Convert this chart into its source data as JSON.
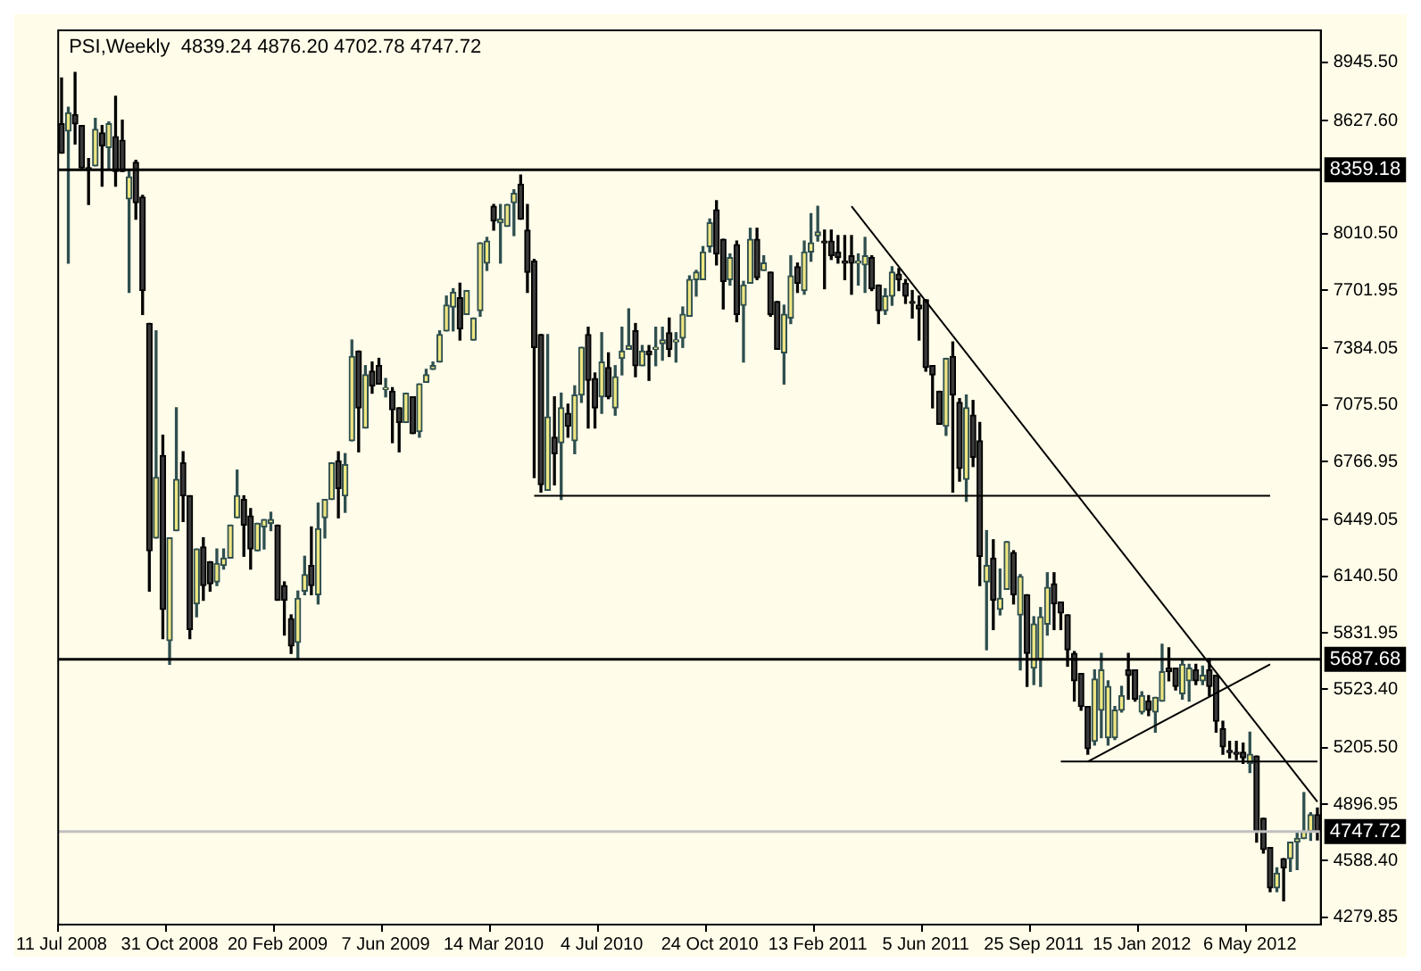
{
  "chart_data": {
    "type": "candlestick",
    "title": "PSI,Weekly  4839.24 4876.20 4702.78 4747.72",
    "categories": [
      "11 Jul 2008",
      null,
      null,
      null,
      null,
      null,
      null,
      null,
      null,
      null,
      null,
      null,
      null,
      null,
      null,
      null,
      "31 Oct 2008",
      null,
      null,
      null,
      null,
      null,
      null,
      null,
      null,
      null,
      null,
      null,
      null,
      null,
      null,
      null,
      "20 Feb 2009",
      null,
      null,
      null,
      null,
      null,
      null,
      null,
      null,
      null,
      null,
      null,
      null,
      null,
      null,
      null,
      "7 Jun 2009",
      null,
      null,
      null,
      null,
      null,
      null,
      null,
      null,
      null,
      null,
      null,
      null,
      null,
      null,
      null,
      "14 Mar 2010",
      null,
      null,
      null,
      null,
      null,
      null,
      null,
      null,
      null,
      null,
      null,
      null,
      null,
      null,
      null,
      "4 Jul 2010",
      null,
      null,
      null,
      null,
      null,
      null,
      null,
      null,
      null,
      null,
      null,
      null,
      null,
      null,
      null,
      "24 Oct 2010",
      null,
      null,
      null,
      null,
      null,
      null,
      null,
      null,
      null,
      null,
      null,
      null,
      null,
      null,
      null,
      "13 Feb 2011",
      null,
      null,
      null,
      null,
      null,
      null,
      null,
      null,
      null,
      null,
      null,
      null,
      null,
      null,
      null,
      "5 Jun 2011",
      null,
      null,
      null,
      null,
      null,
      null,
      null,
      null,
      null,
      null,
      null,
      null,
      null,
      null,
      null,
      "25 Sep 2011",
      null,
      null,
      null,
      null,
      null,
      null,
      null,
      null,
      null,
      null,
      null,
      null,
      null,
      null,
      null,
      "15 Jan 2012",
      null,
      null,
      null,
      null,
      null,
      null,
      null,
      null,
      null,
      null,
      null,
      null,
      null,
      null,
      null,
      "6 May 2012",
      null,
      null,
      null,
      null,
      null,
      null,
      null,
      null,
      null,
      null
    ],
    "ohlc": [
      [
        8610,
        8860,
        8450,
        8450
      ],
      [
        8570,
        8700,
        7850,
        8670
      ],
      [
        8660,
        8890,
        8500,
        8610
      ],
      [
        8600,
        8600,
        8370,
        8370
      ],
      [
        8370,
        8420,
        8170,
        8360
      ],
      [
        8380,
        8640,
        8380,
        8580
      ],
      [
        8560,
        8600,
        8270,
        8490
      ],
      [
        8480,
        8620,
        8360,
        8610
      ],
      [
        8540,
        8760,
        8270,
        8350
      ],
      [
        8520,
        8630,
        8350,
        8350
      ],
      [
        8200,
        8360,
        7690,
        8320
      ],
      [
        8400,
        8410,
        8090,
        8180
      ],
      [
        8210,
        8220,
        7570,
        7700
      ],
      [
        7520,
        7520,
        6060,
        6280
      ],
      [
        6350,
        7480,
        6350,
        6680
      ],
      [
        6800,
        6910,
        5800,
        5960
      ],
      [
        5790,
        6350,
        5660,
        6350
      ],
      [
        6390,
        7060,
        6390,
        6670
      ],
      [
        6760,
        6820,
        6440,
        6580
      ],
      [
        6580,
        6580,
        5800,
        5850
      ],
      [
        5990,
        6290,
        5920,
        6290
      ],
      [
        6300,
        6350,
        6010,
        6090
      ],
      [
        6220,
        6220,
        6060,
        6100
      ],
      [
        6110,
        6290,
        6090,
        6210
      ],
      [
        6200,
        6290,
        6180,
        6240
      ],
      [
        6240,
        6420,
        6240,
        6420
      ],
      [
        6460,
        6720,
        6460,
        6580
      ],
      [
        6560,
        6580,
        6250,
        6420
      ],
      [
        6470,
        6510,
        6180,
        6290
      ],
      [
        6280,
        6430,
        6280,
        6430
      ],
      [
        6410,
        6450,
        6290,
        6450
      ],
      [
        6430,
        6490,
        6390,
        6450
      ],
      [
        6420,
        6420,
        6010,
        6010
      ],
      [
        6090,
        6110,
        5820,
        6010
      ],
      [
        5910,
        5930,
        5720,
        5760
      ],
      [
        5780,
        6060,
        5690,
        6020
      ],
      [
        6060,
        6250,
        6040,
        6150
      ],
      [
        6200,
        6410,
        6040,
        6090
      ],
      [
        6040,
        6540,
        5990,
        6400
      ],
      [
        6460,
        6560,
        6350,
        6560
      ],
      [
        6560,
        6760,
        6560,
        6760
      ],
      [
        6770,
        6820,
        6460,
        6620
      ],
      [
        6580,
        6810,
        6490,
        6750
      ],
      [
        6880,
        7430,
        6880,
        7340
      ],
      [
        7370,
        7370,
        6820,
        7060
      ],
      [
        6950,
        7290,
        6950,
        7240
      ],
      [
        7260,
        7310,
        7140,
        7180
      ],
      [
        7290,
        7330,
        7190,
        7190
      ],
      [
        7160,
        7220,
        7120,
        7170
      ],
      [
        7150,
        7170,
        6870,
        7050
      ],
      [
        7060,
        7060,
        6820,
        6980
      ],
      [
        6980,
        7140,
        6980,
        7140
      ],
      [
        7120,
        7120,
        6920,
        6920
      ],
      [
        6930,
        7190,
        6900,
        7190
      ],
      [
        7200,
        7270,
        7200,
        7240
      ],
      [
        7270,
        7310,
        7270,
        7290
      ],
      [
        7310,
        7480,
        7310,
        7460
      ],
      [
        7480,
        7670,
        7480,
        7620
      ],
      [
        7610,
        7710,
        7480,
        7690
      ],
      [
        7660,
        7740,
        7430,
        7490
      ],
      [
        7570,
        7700,
        7570,
        7700
      ],
      [
        7430,
        7550,
        7430,
        7550
      ],
      [
        7590,
        7960,
        7560,
        7960
      ],
      [
        7850,
        7990,
        7810,
        7970
      ],
      [
        8160,
        8170,
        8030,
        8080
      ],
      [
        8070,
        8170,
        7850,
        8090
      ],
      [
        8050,
        8170,
        8050,
        8170
      ],
      [
        8180,
        8250,
        8000,
        8230
      ],
      [
        8280,
        8330,
        8090,
        8090
      ],
      [
        8030,
        8170,
        7690,
        7800
      ],
      [
        7860,
        7870,
        6680,
        7390
      ],
      [
        7460,
        7460,
        6600,
        6640
      ],
      [
        6610,
        7460,
        6610,
        7010
      ],
      [
        6900,
        7120,
        6640,
        6810
      ],
      [
        6870,
        7140,
        6560,
        7060
      ],
      [
        7030,
        7080,
        6900,
        6960
      ],
      [
        6880,
        7180,
        6810,
        7130
      ],
      [
        7130,
        7390,
        7090,
        7390
      ],
      [
        7460,
        7500,
        6950,
        7210
      ],
      [
        7220,
        7250,
        6950,
        7060
      ],
      [
        7120,
        7470,
        7030,
        7310
      ],
      [
        7280,
        7360,
        7110,
        7120
      ],
      [
        7060,
        7290,
        7020,
        7230
      ],
      [
        7330,
        7500,
        7240,
        7370
      ],
      [
        7380,
        7600,
        7380,
        7400
      ],
      [
        7480,
        7520,
        7230,
        7290
      ],
      [
        7290,
        7400,
        7290,
        7370
      ],
      [
        7370,
        7400,
        7210,
        7350
      ],
      [
        7380,
        7500,
        7290,
        7390
      ],
      [
        7410,
        7500,
        7320,
        7430
      ],
      [
        7470,
        7550,
        7340,
        7380
      ],
      [
        7420,
        7470,
        7310,
        7430
      ],
      [
        7440,
        7610,
        7390,
        7570
      ],
      [
        7560,
        7780,
        7560,
        7760
      ],
      [
        7760,
        7810,
        7670,
        7800
      ],
      [
        7760,
        7940,
        7760,
        7910
      ],
      [
        7940,
        8090,
        7910,
        8070
      ],
      [
        8140,
        8190,
        7840,
        7900
      ],
      [
        7980,
        7980,
        7600,
        7750
      ],
      [
        7760,
        7900,
        7730,
        7880
      ],
      [
        7950,
        7970,
        7530,
        7570
      ],
      [
        7620,
        7750,
        7310,
        7730
      ],
      [
        7740,
        8040,
        7740,
        7980
      ],
      [
        7980,
        8040,
        7760,
        7770
      ],
      [
        7810,
        7890,
        7810,
        7850
      ],
      [
        7800,
        7800,
        7560,
        7570
      ],
      [
        7640,
        7640,
        7380,
        7380
      ],
      [
        7360,
        7620,
        7190,
        7570
      ],
      [
        7550,
        7890,
        7520,
        7780
      ],
      [
        7830,
        7850,
        7690,
        7740
      ],
      [
        7700,
        7970,
        7680,
        7910
      ],
      [
        7910,
        8120,
        7860,
        7960
      ],
      [
        8000,
        8160,
        7970,
        8020
      ],
      [
        7970,
        8030,
        7710,
        7960
      ],
      [
        7970,
        8030,
        7870,
        7890
      ],
      [
        7910,
        8000,
        7850,
        7880
      ],
      [
        7860,
        8000,
        7760,
        7850
      ],
      [
        7890,
        8000,
        7680,
        7850
      ],
      [
        7850,
        7900,
        7730,
        7860
      ],
      [
        7840,
        7990,
        7690,
        7890
      ],
      [
        7880,
        7890,
        7700,
        7710
      ],
      [
        7730,
        7730,
        7520,
        7590
      ],
      [
        7590,
        7710,
        7570,
        7670
      ],
      [
        7670,
        7830,
        7620,
        7800
      ],
      [
        7790,
        7820,
        7700,
        7760
      ],
      [
        7740,
        7760,
        7630,
        7670
      ],
      [
        7640,
        7700,
        7550,
        7630
      ],
      [
        7620,
        7670,
        7430,
        7600
      ],
      [
        7650,
        7650,
        7260,
        7280
      ],
      [
        7290,
        7290,
        7060,
        7240
      ],
      [
        7150,
        7150,
        6970,
        6970
      ],
      [
        6960,
        7330,
        6910,
        7330
      ],
      [
        7340,
        7420,
        6600,
        7130
      ],
      [
        7090,
        7110,
        6660,
        6730
      ],
      [
        6670,
        7130,
        6550,
        7060
      ],
      [
        7020,
        7100,
        6740,
        6790
      ],
      [
        6880,
        6980,
        6090,
        6250
      ],
      [
        6110,
        6390,
        5740,
        6200
      ],
      [
        6240,
        6340,
        5850,
        6010
      ],
      [
        5960,
        6180,
        5930,
        6020
      ],
      [
        6070,
        6330,
        6070,
        6330
      ],
      [
        6270,
        6280,
        5990,
        6040
      ],
      [
        5930,
        6150,
        5630,
        6140
      ],
      [
        6040,
        6040,
        5540,
        5720
      ],
      [
        5640,
        5920,
        5550,
        5880
      ],
      [
        5690,
        5970,
        5540,
        5920
      ],
      [
        5880,
        6160,
        5820,
        6080
      ],
      [
        6100,
        6160,
        5850,
        5990
      ],
      [
        6000,
        6000,
        5850,
        5940
      ],
      [
        5930,
        5930,
        5650,
        5740
      ],
      [
        5720,
        5730,
        5460,
        5570
      ],
      [
        5610,
        5610,
        5410,
        5430
      ],
      [
        5430,
        5430,
        5170,
        5200
      ],
      [
        5240,
        5630,
        5220,
        5580
      ],
      [
        5410,
        5720,
        5260,
        5630
      ],
      [
        5260,
        5570,
        5220,
        5540
      ],
      [
        5260,
        5430,
        5250,
        5410
      ],
      [
        5410,
        5540,
        5400,
        5490
      ],
      [
        5630,
        5720,
        5470,
        5600
      ],
      [
        5630,
        5630,
        5460,
        5470
      ],
      [
        5400,
        5510,
        5390,
        5490
      ],
      [
        5460,
        5490,
        5380,
        5410
      ],
      [
        5400,
        5480,
        5290,
        5480
      ],
      [
        5460,
        5770,
        5460,
        5620
      ],
      [
        5640,
        5750,
        5570,
        5620
      ],
      [
        5640,
        5640,
        5520,
        5540
      ],
      [
        5500,
        5680,
        5470,
        5660
      ],
      [
        5570,
        5660,
        5460,
        5640
      ],
      [
        5630,
        5660,
        5550,
        5570
      ],
      [
        5570,
        5650,
        5550,
        5600
      ],
      [
        5630,
        5690,
        5490,
        5540
      ],
      [
        5600,
        5600,
        5290,
        5350
      ],
      [
        5310,
        5350,
        5170,
        5210
      ],
      [
        5190,
        5240,
        5150,
        5180
      ],
      [
        5180,
        5240,
        5140,
        5170
      ],
      [
        5180,
        5230,
        5120,
        5150
      ],
      [
        5120,
        5290,
        5070,
        5170
      ],
      [
        5160,
        5160,
        4690,
        4750
      ],
      [
        4820,
        4820,
        4630,
        4650
      ],
      [
        4660,
        4660,
        4420,
        4440
      ],
      [
        4440,
        4550,
        4420,
        4520
      ],
      [
        4600,
        4600,
        4370,
        4550
      ],
      [
        4600,
        4690,
        4530,
        4690
      ],
      [
        4690,
        4740,
        4540,
        4710
      ],
      [
        4710,
        4960,
        4710,
        4750
      ],
      [
        4750,
        4850,
        4700,
        4840
      ],
      [
        4839.24,
        4876.2,
        4702.78,
        4747.72
      ]
    ],
    "series": [
      {
        "type": "line",
        "color": "#000000",
        "values": [
          null,
          null,
          null,
          null,
          null,
          null,
          null,
          null,
          null,
          null,
          null,
          null,
          null,
          null,
          null,
          null,
          null,
          null,
          null,
          null,
          null,
          null,
          null,
          null,
          null,
          null,
          null,
          null,
          null,
          null,
          null,
          null,
          null,
          null,
          null,
          null,
          null,
          null,
          null,
          null,
          null,
          null,
          null,
          null,
          null,
          null,
          null,
          null,
          null,
          null,
          null,
          null,
          null,
          null,
          null,
          null,
          null,
          null,
          null,
          null,
          null,
          null,
          null,
          null,
          null,
          null,
          null,
          null,
          null,
          null,
          null,
          null,
          null,
          null,
          null,
          null,
          null,
          null,
          null,
          null,
          null,
          null,
          null,
          null,
          null,
          null,
          null,
          null,
          null,
          null,
          null,
          null,
          null,
          null,
          null,
          null,
          null,
          null,
          null,
          null,
          null,
          null,
          null,
          null,
          null,
          null,
          null,
          null,
          null,
          null,
          null,
          null,
          null,
          null,
          null,
          null,
          null,
          8160,
          null,
          null,
          null,
          null,
          null,
          null,
          null,
          null,
          null,
          null,
          null,
          null,
          null,
          null,
          null,
          null,
          null,
          null,
          null,
          null,
          null,
          null,
          null,
          null,
          null,
          null,
          null,
          null,
          null,
          null,
          null,
          null,
          null,
          null,
          null,
          null,
          null,
          null,
          null,
          null,
          null,
          null,
          null,
          null,
          null,
          null,
          null,
          null,
          null,
          null,
          null,
          null,
          null,
          null,
          null,
          null,
          null,
          null,
          null,
          null,
          null,
          null,
          null,
          null,
          null,
          null,
          null,
          null,
          4910
        ]
      },
      {
        "type": "line",
        "color": "#000000",
        "values": [
          null,
          null,
          null,
          null,
          null,
          null,
          null,
          null,
          null,
          null,
          null,
          null,
          null,
          null,
          null,
          null,
          null,
          null,
          null,
          null,
          null,
          null,
          null,
          null,
          null,
          null,
          null,
          null,
          null,
          null,
          null,
          null,
          null,
          null,
          null,
          null,
          null,
          null,
          null,
          null,
          null,
          null,
          null,
          null,
          null,
          null,
          null,
          null,
          null,
          null,
          null,
          null,
          null,
          null,
          null,
          null,
          null,
          null,
          null,
          null,
          null,
          null,
          null,
          null,
          null,
          null,
          null,
          null,
          null,
          null,
          6580,
          null,
          null,
          null,
          null,
          null,
          null,
          null,
          null,
          null,
          null,
          null,
          null,
          null,
          null,
          null,
          null,
          null,
          null,
          null,
          null,
          null,
          null,
          null,
          null,
          null,
          null,
          null,
          null,
          null,
          null,
          null,
          null,
          null,
          null,
          null,
          null,
          null,
          null,
          null,
          null,
          null,
          null,
          null,
          null,
          null,
          null,
          null,
          null,
          null,
          null,
          null,
          null,
          null,
          null,
          null,
          null,
          null,
          null,
          null,
          null,
          null,
          null,
          null,
          null,
          null,
          null,
          null,
          null,
          null,
          null,
          null,
          null,
          null,
          null,
          null,
          null,
          null,
          null,
          null,
          null,
          null,
          null,
          null,
          null,
          null,
          null,
          null,
          null,
          null,
          null,
          null,
          null,
          null,
          null,
          null,
          null,
          null,
          null,
          null,
          null,
          null,
          null,
          null,
          null,
          null,
          null,
          null,
          null,
          6580,
          null,
          null,
          null,
          null,
          null,
          null,
          null
        ]
      },
      {
        "type": "line",
        "color": "#000000",
        "values": [
          null,
          null,
          null,
          null,
          null,
          null,
          null,
          null,
          null,
          null,
          null,
          null,
          null,
          null,
          null,
          null,
          null,
          null,
          null,
          null,
          null,
          null,
          null,
          null,
          null,
          null,
          null,
          null,
          null,
          null,
          null,
          null,
          null,
          null,
          null,
          null,
          null,
          null,
          null,
          null,
          null,
          null,
          null,
          null,
          null,
          null,
          null,
          null,
          null,
          null,
          null,
          null,
          null,
          null,
          null,
          null,
          null,
          null,
          null,
          null,
          null,
          null,
          null,
          null,
          null,
          null,
          null,
          null,
          null,
          null,
          null,
          null,
          null,
          null,
          null,
          null,
          null,
          null,
          null,
          null,
          null,
          null,
          null,
          null,
          null,
          null,
          null,
          null,
          null,
          null,
          null,
          null,
          null,
          null,
          null,
          null,
          null,
          null,
          null,
          null,
          null,
          null,
          null,
          null,
          null,
          null,
          null,
          null,
          null,
          null,
          null,
          null,
          null,
          null,
          null,
          null,
          null,
          null,
          null,
          null,
          null,
          null,
          null,
          null,
          null,
          null,
          null,
          null,
          null,
          null,
          null,
          null,
          null,
          null,
          null,
          null,
          null,
          null,
          null,
          null,
          null,
          null,
          null,
          null,
          null,
          null,
          null,
          null,
          5130,
          null,
          null,
          null,
          null,
          null,
          null,
          null,
          null,
          null,
          null,
          null,
          null,
          null,
          null,
          null,
          null,
          null,
          null,
          null,
          null,
          null,
          null,
          null,
          null,
          null,
          null,
          null,
          null,
          null,
          null,
          null,
          null,
          null,
          null,
          null,
          null,
          null,
          5130
        ]
      },
      {
        "type": "line",
        "color": "#000000",
        "values": [
          null,
          null,
          null,
          null,
          null,
          null,
          null,
          null,
          null,
          null,
          null,
          null,
          null,
          null,
          null,
          null,
          null,
          null,
          null,
          null,
          null,
          null,
          null,
          null,
          null,
          null,
          null,
          null,
          null,
          null,
          null,
          null,
          null,
          null,
          null,
          null,
          null,
          null,
          null,
          null,
          null,
          null,
          null,
          null,
          null,
          null,
          null,
          null,
          null,
          null,
          null,
          null,
          null,
          null,
          null,
          null,
          null,
          null,
          null,
          null,
          null,
          null,
          null,
          null,
          null,
          null,
          null,
          null,
          null,
          null,
          null,
          null,
          null,
          null,
          null,
          null,
          null,
          null,
          null,
          null,
          null,
          null,
          null,
          null,
          null,
          null,
          null,
          null,
          null,
          null,
          null,
          null,
          null,
          null,
          null,
          null,
          null,
          null,
          null,
          null,
          null,
          null,
          null,
          null,
          null,
          null,
          null,
          null,
          null,
          null,
          null,
          null,
          null,
          null,
          null,
          null,
          null,
          null,
          null,
          null,
          null,
          null,
          null,
          null,
          null,
          null,
          null,
          null,
          null,
          null,
          null,
          null,
          null,
          null,
          null,
          null,
          null,
          null,
          null,
          null,
          null,
          null,
          null,
          null,
          null,
          null,
          null,
          null,
          null,
          null,
          null,
          null,
          5130,
          null,
          null,
          null,
          null,
          null,
          null,
          null,
          null,
          null,
          null,
          null,
          null,
          null,
          null,
          null,
          null,
          null,
          null,
          null,
          null,
          null,
          null,
          null,
          null,
          null,
          null,
          5660,
          null,
          null,
          null,
          null,
          null,
          null,
          null
        ]
      }
    ],
    "ylim": [
      4240,
      9120
    ],
    "yticks": [
      {
        "value": 4279.85,
        "label": "4279.85"
      },
      {
        "value": 4588.4,
        "label": "4588.40"
      },
      {
        "value": 4896.95,
        "label": "4896.95"
      },
      {
        "value": 5205.5,
        "label": "5205.50"
      },
      {
        "value": 5523.4,
        "label": "5523.40"
      },
      {
        "value": 5831.95,
        "label": "5831.95"
      },
      {
        "value": 6140.5,
        "label": "6140.50"
      },
      {
        "value": 6449.05,
        "label": "6449.05"
      },
      {
        "value": 6766.95,
        "label": "6766.95"
      },
      {
        "value": 7075.5,
        "label": "7075.50"
      },
      {
        "value": 7384.05,
        "label": "7384.05"
      },
      {
        "value": 7701.95,
        "label": "7701.95"
      },
      {
        "value": 8010.5,
        "label": "8010.50"
      },
      {
        "value": 8627.6,
        "label": "8627.60"
      },
      {
        "value": 8945.5,
        "label": "8945.50"
      }
    ],
    "ref_lines": [
      {
        "axis": "y",
        "value": 8359.18,
        "label": "8359.18",
        "color": "#000000"
      },
      {
        "axis": "y",
        "value": 5687.68,
        "label": "5687.68",
        "color": "#000000"
      },
      {
        "axis": "y",
        "value": 4747.72,
        "label": "4747.72",
        "color": "#c0c0c0"
      }
    ],
    "grid": false,
    "legend": false
  }
}
